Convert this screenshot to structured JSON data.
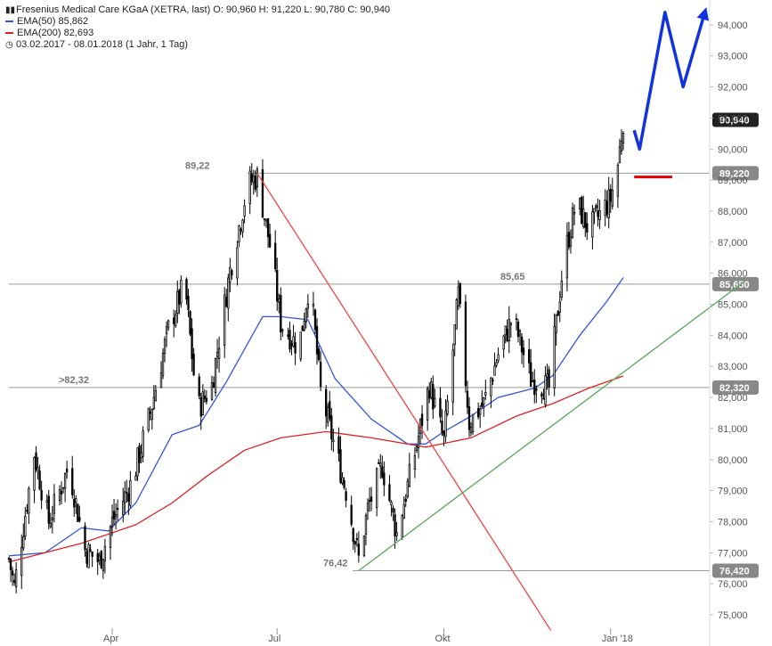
{
  "legend": {
    "title": "Fresenius Medical Care KGaA (XETRA, last)  O: 90,960  H: 91,220  L: 90,780  C: 90,940",
    "ema50": "EMA(50)  85,862",
    "ema200": "EMA(200)  82,693",
    "period": "03.02.2017 - 08.01.2018  (1 Jahr, 1 Tag)",
    "ema50_color": "#3355dd",
    "ema200_color": "#dd2222",
    "chart_icon": "candlestick-icon",
    "period_icon": "clock-icon"
  },
  "chart_data": {
    "type": "candlestick",
    "y_axis": {
      "min": 74.5,
      "max": 95,
      "position": "right",
      "ticks": [
        75000,
        76000,
        77000,
        78000,
        79000,
        80000,
        81000,
        82000,
        83000,
        84000,
        85000,
        86000,
        87000,
        88000,
        89000,
        90000,
        91000,
        92000,
        93000,
        94000
      ],
      "tick_labels": [
        "75,000",
        "76,000",
        "77,000",
        "78,000",
        "79,000",
        "80,000",
        "81,000",
        "82,000",
        "83,000",
        "84,000",
        "85,000",
        "86,000",
        "87,000",
        "88,000",
        "89,000",
        "90,000",
        "91,000",
        "92,000",
        "93,000",
        "94,000"
      ]
    },
    "x_axis": {
      "labels": [
        {
          "label": "Apr",
          "day": 57
        },
        {
          "label": "Jul",
          "day": 148
        },
        {
          "label": "Okt",
          "day": 240
        },
        {
          "label": "Jan '18",
          "day": 332
        }
      ],
      "total_days": 339
    },
    "levels": [
      {
        "value": 89.22,
        "label": "89,22",
        "box": "89,220"
      },
      {
        "value": 85.65,
        "label": "85,65",
        "box": "85,650"
      },
      {
        "value": 82.32,
        "label": ">82,32",
        "box": "82,320"
      },
      {
        "value": 76.42,
        "label": "76,42",
        "box": "76,420"
      }
    ],
    "last_price": {
      "value": 90.94,
      "box": "90,940"
    },
    "key_points": [
      {
        "day": 0,
        "close": 76.8
      },
      {
        "day": 3,
        "close": 75.9
      },
      {
        "day": 14,
        "close": 80.2
      },
      {
        "day": 22,
        "close": 78.0
      },
      {
        "day": 33,
        "close": 79.8
      },
      {
        "day": 42,
        "close": 77.1
      },
      {
        "day": 50,
        "close": 76.7
      },
      {
        "day": 57,
        "close": 78.0
      },
      {
        "day": 68,
        "close": 79.3
      },
      {
        "day": 78,
        "close": 81.5
      },
      {
        "day": 88,
        "close": 84.2
      },
      {
        "day": 97,
        "close": 85.7
      },
      {
        "day": 104,
        "close": 81.6
      },
      {
        "day": 112,
        "close": 82.4
      },
      {
        "day": 122,
        "close": 86.1
      },
      {
        "day": 132,
        "close": 88.9
      },
      {
        "day": 137,
        "close": 89.1
      },
      {
        "day": 145,
        "close": 86.6
      },
      {
        "day": 150,
        "close": 84.4
      },
      {
        "day": 160,
        "close": 83.6
      },
      {
        "day": 166,
        "close": 85.8
      },
      {
        "day": 172,
        "close": 82.2
      },
      {
        "day": 178,
        "close": 80.8
      },
      {
        "day": 186,
        "close": 79.0
      },
      {
        "day": 193,
        "close": 76.8
      },
      {
        "day": 198,
        "close": 78.4
      },
      {
        "day": 206,
        "close": 79.8
      },
      {
        "day": 214,
        "close": 77.6
      },
      {
        "day": 224,
        "close": 80.2
      },
      {
        "day": 232,
        "close": 82.4
      },
      {
        "day": 240,
        "close": 80.6
      },
      {
        "day": 248,
        "close": 85.3
      },
      {
        "day": 254,
        "close": 81.2
      },
      {
        "day": 262,
        "close": 81.8
      },
      {
        "day": 270,
        "close": 83.4
      },
      {
        "day": 278,
        "close": 84.6
      },
      {
        "day": 288,
        "close": 82.6
      },
      {
        "day": 298,
        "close": 82.3
      },
      {
        "day": 306,
        "close": 86.4
      },
      {
        "day": 313,
        "close": 88.3
      },
      {
        "day": 320,
        "close": 87.4
      },
      {
        "day": 326,
        "close": 87.9
      },
      {
        "day": 332,
        "close": 88.4
      },
      {
        "day": 336,
        "close": 89.5
      },
      {
        "day": 339,
        "close": 90.94
      }
    ],
    "ema50_points": [
      {
        "day": 0,
        "value": 76.9
      },
      {
        "day": 20,
        "value": 77.0
      },
      {
        "day": 40,
        "value": 77.8
      },
      {
        "day": 55,
        "value": 77.7
      },
      {
        "day": 70,
        "value": 78.6
      },
      {
        "day": 90,
        "value": 80.8
      },
      {
        "day": 105,
        "value": 81.1
      },
      {
        "day": 120,
        "value": 82.5
      },
      {
        "day": 140,
        "value": 84.6
      },
      {
        "day": 150,
        "value": 84.6
      },
      {
        "day": 165,
        "value": 84.5
      },
      {
        "day": 180,
        "value": 82.6
      },
      {
        "day": 200,
        "value": 81.3
      },
      {
        "day": 220,
        "value": 80.5
      },
      {
        "day": 230,
        "value": 80.5
      },
      {
        "day": 240,
        "value": 80.9
      },
      {
        "day": 255,
        "value": 81.4
      },
      {
        "day": 270,
        "value": 82.0
      },
      {
        "day": 290,
        "value": 82.3
      },
      {
        "day": 300,
        "value": 82.7
      },
      {
        "day": 315,
        "value": 84.0
      },
      {
        "day": 330,
        "value": 85.1
      },
      {
        "day": 339,
        "value": 85.86
      }
    ],
    "ema200_points": [
      {
        "day": 0,
        "value": 76.7
      },
      {
        "day": 40,
        "value": 77.3
      },
      {
        "day": 70,
        "value": 77.9
      },
      {
        "day": 90,
        "value": 78.6
      },
      {
        "day": 110,
        "value": 79.5
      },
      {
        "day": 130,
        "value": 80.3
      },
      {
        "day": 150,
        "value": 80.7
      },
      {
        "day": 175,
        "value": 80.9
      },
      {
        "day": 200,
        "value": 80.7
      },
      {
        "day": 230,
        "value": 80.4
      },
      {
        "day": 255,
        "value": 80.7
      },
      {
        "day": 280,
        "value": 81.4
      },
      {
        "day": 300,
        "value": 81.8
      },
      {
        "day": 320,
        "value": 82.3
      },
      {
        "day": 339,
        "value": 82.69
      }
    ],
    "trendlines": [
      {
        "name": "downtrend",
        "color": "#ee4444",
        "from": {
          "day": 137,
          "value": 89.22
        },
        "to": {
          "day": 299,
          "value": 74.5
        }
      },
      {
        "name": "uptrend",
        "color": "#55aa55",
        "from": {
          "day": 193,
          "value": 76.42
        },
        "to": {
          "day": 405,
          "value": 85.7
        }
      }
    ],
    "target_marker": {
      "color": "#dd0000",
      "day_from": 345,
      "day_to": 366,
      "value": 89.1
    },
    "forecast_arrow": {
      "color": "#1133dd",
      "points": [
        {
          "day": 345,
          "value": 90.6
        },
        {
          "day": 348,
          "value": 90.0
        },
        {
          "day": 362,
          "value": 94.4
        },
        {
          "day": 372,
          "value": 92.0
        },
        {
          "day": 384,
          "value": 94.4
        }
      ]
    }
  }
}
